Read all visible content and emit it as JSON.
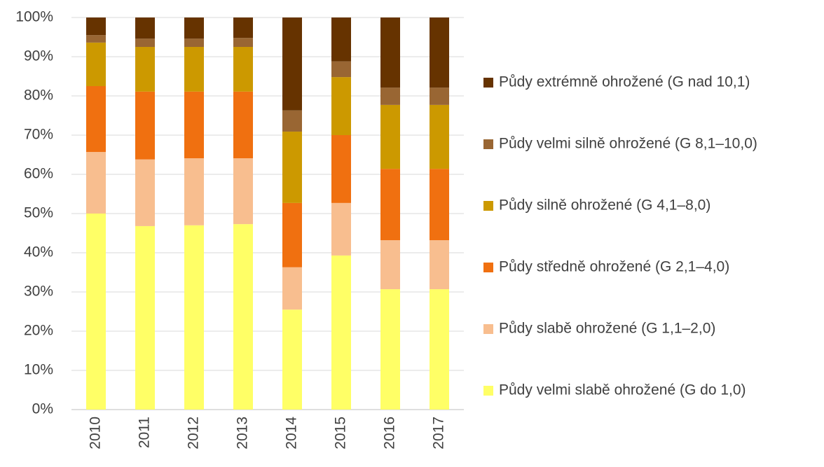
{
  "chart_data": {
    "type": "stacked_bar",
    "categories": [
      "2010",
      "2011",
      "2012",
      "2013",
      "2014",
      "2015",
      "2016",
      "2017"
    ],
    "series": [
      {
        "name": "Půdy velmi slabě ohrožené (G do 1,0)",
        "color": "#ffff66",
        "values": [
          50,
          46.8,
          47,
          47.3,
          25.5,
          39.3,
          30.7,
          30.7
        ]
      },
      {
        "name": "Půdy slabě ohrožené (G 1,1–2,0)",
        "color": "#f8be8f",
        "values": [
          15.7,
          17,
          17.1,
          16.8,
          10.8,
          13.4,
          12.5,
          12.5
        ]
      },
      {
        "name": "Půdy středně ohrožené (G 2,1–4,0)",
        "color": "#f07010",
        "values": [
          16.8,
          17.3,
          17,
          17,
          16.4,
          17.3,
          18.2,
          18.2
        ]
      },
      {
        "name": "Půdy silně ohrožené (G 4,1–8,0)",
        "color": "#cc9900",
        "values": [
          11.1,
          11.4,
          11.4,
          11.4,
          18.2,
          14.8,
          16.3,
          16.3
        ]
      },
      {
        "name": "Půdy velmi silně ohrožené (G 8,1–10,0)",
        "color": "#996633",
        "values": [
          1.9,
          2.1,
          2.1,
          2.3,
          5.4,
          4,
          4.4,
          4.4
        ]
      },
      {
        "name": "Půdy extrémně ohrožené (G nad 10,1)",
        "color": "#663300",
        "values": [
          4.5,
          5.4,
          5.4,
          5.2,
          23.7,
          11.2,
          17.9,
          17.9
        ]
      }
    ],
    "ylim": [
      0,
      100
    ],
    "yticks": [
      {
        "value": 0,
        "label": "0%"
      },
      {
        "value": 10,
        "label": "10%"
      },
      {
        "value": 20,
        "label": "20%"
      },
      {
        "value": 30,
        "label": "30%"
      },
      {
        "value": 40,
        "label": "40%"
      },
      {
        "value": 50,
        "label": "50%"
      },
      {
        "value": 60,
        "label": "60%"
      },
      {
        "value": 70,
        "label": "70%"
      },
      {
        "value": 80,
        "label": "80%"
      },
      {
        "value": 90,
        "label": "90%"
      },
      {
        "value": 100,
        "label": "100%"
      }
    ],
    "grid": true,
    "legend": "right"
  }
}
